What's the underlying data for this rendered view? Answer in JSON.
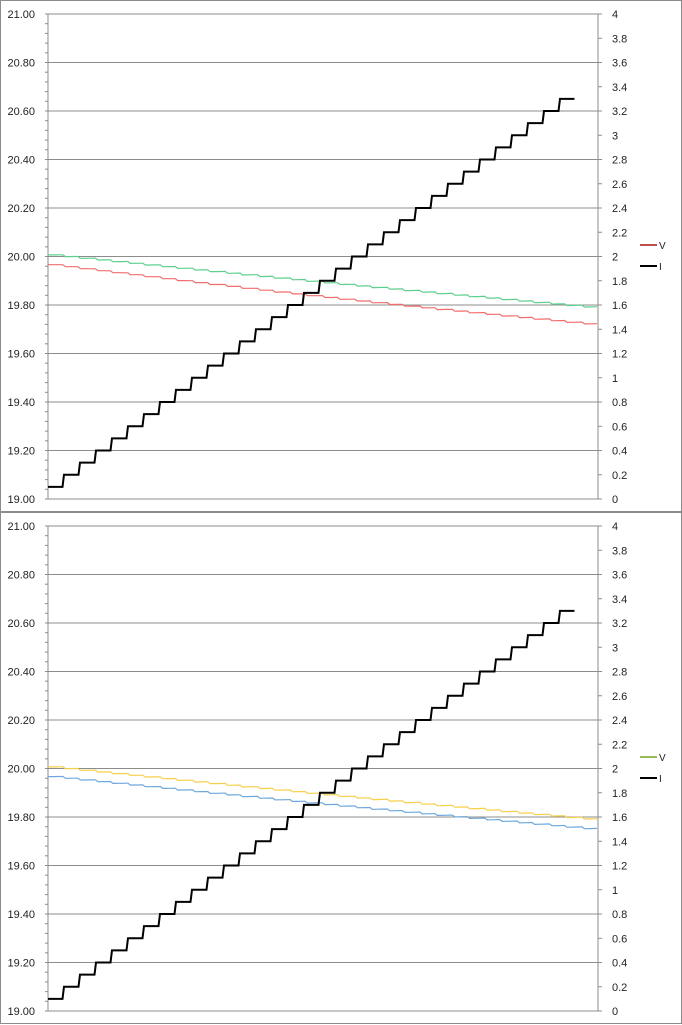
{
  "chart_data": [
    {
      "type": "line",
      "title": "",
      "xlabel": "",
      "ylabel": "",
      "y_left": {
        "ylim": [
          19.0,
          21.0
        ],
        "ticks": [
          "19.00",
          "19.20",
          "19.40",
          "19.60",
          "19.80",
          "20.00",
          "20.20",
          "20.40",
          "20.60",
          "20.80",
          "21.00"
        ]
      },
      "y_right": {
        "ylim": [
          0,
          4
        ],
        "ticks": [
          "0",
          "0.2",
          "0.4",
          "0.6",
          "0.8",
          "1",
          "1.2",
          "1.4",
          "1.6",
          "1.8",
          "2",
          "2.2",
          "2.4",
          "2.6",
          "2.8",
          "3",
          "3.2",
          "3.4",
          "3.6",
          "3.8",
          "4"
        ]
      },
      "grid": true,
      "legend_position": "right",
      "legend": [
        {
          "label": "V",
          "color": "#c0504d"
        },
        {
          "label": "I",
          "color": "#000000"
        }
      ],
      "series": [
        {
          "axis": "left",
          "color": "#5cd08e",
          "start": 20.01,
          "end": 19.79,
          "curvature": 0.01
        },
        {
          "axis": "left",
          "color": "#f06e6e",
          "start": 19.97,
          "end": 19.72,
          "curvature": 0.02
        },
        {
          "axis": "right",
          "name": "I",
          "color": "#000000",
          "steps": [
            0.1,
            0.2,
            0.3,
            0.4,
            0.5,
            0.6,
            0.7,
            0.8,
            0.9,
            1.0,
            1.1,
            1.2,
            1.3,
            1.4,
            1.5,
            1.6,
            1.7,
            1.8,
            1.9,
            2.0,
            2.1,
            2.2,
            2.3,
            2.4,
            2.5,
            2.6,
            2.7,
            2.8,
            2.9,
            3.0,
            3.1,
            3.2,
            3.3
          ]
        }
      ]
    },
    {
      "type": "line",
      "title": "",
      "xlabel": "",
      "ylabel": "",
      "y_left": {
        "ylim": [
          19.0,
          21.0
        ],
        "ticks": [
          "19.00",
          "19.20",
          "19.40",
          "19.60",
          "19.80",
          "20.00",
          "20.20",
          "20.40",
          "20.60",
          "20.80",
          "21.00"
        ]
      },
      "y_right": {
        "ylim": [
          0,
          4
        ],
        "ticks": [
          "0",
          "0.2",
          "0.4",
          "0.6",
          "0.8",
          "1",
          "1.2",
          "1.4",
          "1.6",
          "1.8",
          "2",
          "2.2",
          "2.4",
          "2.6",
          "2.8",
          "3",
          "3.2",
          "3.4",
          "3.6",
          "3.8",
          "4"
        ]
      },
      "grid": true,
      "legend_position": "right",
      "legend": [
        {
          "label": "V",
          "color": "#9bbb59"
        },
        {
          "label": "I",
          "color": "#000000"
        }
      ],
      "series": [
        {
          "axis": "left",
          "color": "#f7cf4a",
          "start": 20.01,
          "end": 19.79,
          "curvature": 0.01
        },
        {
          "axis": "left",
          "color": "#6fa8dc",
          "start": 19.97,
          "end": 19.75,
          "curvature": 0.01
        },
        {
          "axis": "right",
          "name": "I",
          "color": "#000000",
          "steps": [
            0.1,
            0.2,
            0.3,
            0.4,
            0.5,
            0.6,
            0.7,
            0.8,
            0.9,
            1.0,
            1.1,
            1.2,
            1.3,
            1.4,
            1.5,
            1.6,
            1.7,
            1.8,
            1.9,
            2.0,
            2.1,
            2.2,
            2.3,
            2.4,
            2.5,
            2.6,
            2.7,
            2.8,
            2.9,
            3.0,
            3.1,
            3.2,
            3.3
          ]
        }
      ]
    }
  ]
}
